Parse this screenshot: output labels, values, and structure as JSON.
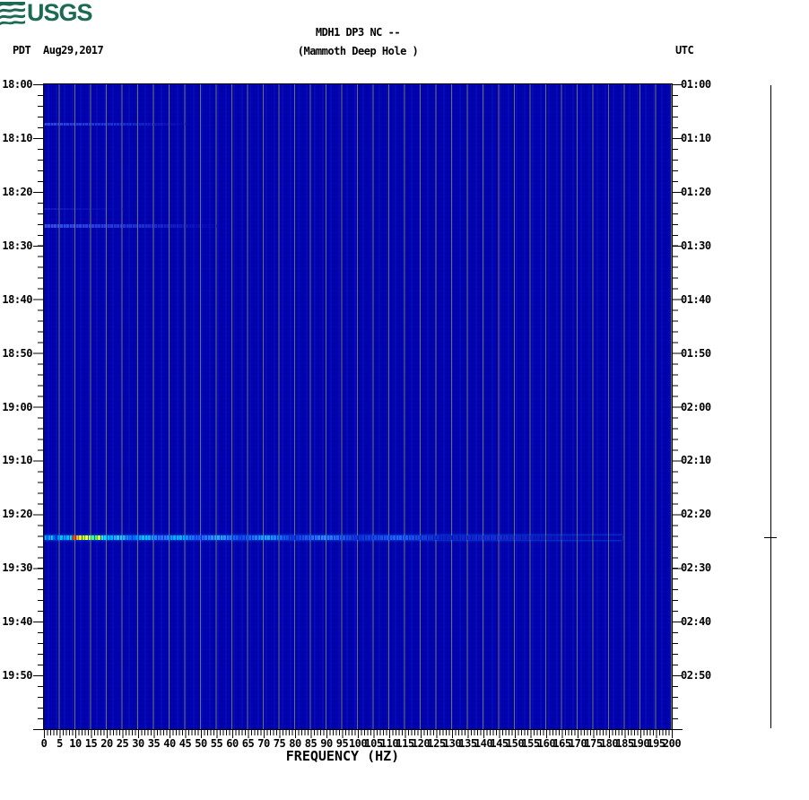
{
  "header": {
    "logo_text": "USGS",
    "tz_left": "PDT",
    "date": "Aug29,2017",
    "title": "MDH1 DP3 NC --",
    "subtitle": "(Mammoth Deep Hole )",
    "tz_right": "UTC"
  },
  "left_axis": {
    "labels": [
      "18:00",
      "18:10",
      "18:20",
      "18:30",
      "18:40",
      "18:50",
      "19:00",
      "19:10",
      "19:20",
      "19:30",
      "19:40",
      "19:50"
    ]
  },
  "right_axis": {
    "labels": [
      "01:00",
      "01:10",
      "01:20",
      "01:30",
      "01:40",
      "01:50",
      "02:00",
      "02:10",
      "02:20",
      "02:30",
      "02:40",
      "02:50"
    ]
  },
  "x_axis": {
    "title": "FREQUENCY (HZ)",
    "tick_labels": [
      "0",
      "5",
      "10",
      "15",
      "20",
      "25",
      "30",
      "35",
      "40",
      "45",
      "50",
      "55",
      "60",
      "65",
      "70",
      "75",
      "80",
      "85",
      "90",
      "95",
      "100",
      "105",
      "110",
      "115",
      "120",
      "125",
      "130",
      "135",
      "140",
      "145",
      "150",
      "155",
      "160",
      "165",
      "170",
      "175",
      "180",
      "185",
      "190",
      "195",
      "200"
    ]
  },
  "chart_data": {
    "type": "heatmap",
    "title": "MDH1 DP3 NC --",
    "subtitle": "(Mammoth Deep Hole )",
    "xlabel": "FREQUENCY (HZ)",
    "x_range_hz": [
      0,
      200
    ],
    "x_minor_tick_hz": 1,
    "x_major_tick_hz": 5,
    "x_gridline_step_hz": 5,
    "y_axis_left_pdt": {
      "start": "18:00",
      "end": "20:00",
      "minor_tick_min": 2,
      "label_step_min": 10,
      "date": "Aug29,2017"
    },
    "y_axis_right_utc": {
      "start": "01:00",
      "end": "03:00",
      "minor_tick_min": 2,
      "label_step_min": 10
    },
    "colormap": "jet (dark blue = low power, red = high power)",
    "background": "uniform low-power dark blue with faint vertical striation texture",
    "grid": "vertical gray gridlines every 5 Hz",
    "events": [
      {
        "time_pdt": "18:07",
        "time_utc": "01:07",
        "freq_span_hz": [
          0,
          47
        ],
        "intensity": "very faint light-blue band"
      },
      {
        "time_pdt": "18:23",
        "time_utc": "01:23",
        "freq_span_hz": [
          0,
          27
        ],
        "intensity": "barely visible light-blue wisp"
      },
      {
        "time_pdt": "18:26",
        "time_utc": "01:26",
        "freq_span_hz": [
          0,
          56
        ],
        "intensity": "faint light-blue band"
      },
      {
        "time_pdt": "19:24",
        "time_utc": "02:24",
        "freq_span_hz": [
          0,
          184
        ],
        "intensity": "strong broadband burst; peak (red/yellow/green) near 9-20 Hz, cyan streaks to ~110 Hz, fading blue streaks beyond"
      }
    ],
    "side_trace": {
      "description": "vertical amplitude trace at far right, flat line with single blip",
      "blip_time_pdt": "19:24",
      "blip_time_utc": "02:24"
    }
  },
  "colors": {
    "plot_background": "#0103b2",
    "gridline": "#70706a",
    "logo_green": "#1b6b52",
    "event_peak_colors": [
      "#ee2200",
      "#ffee00",
      "#55ff77",
      "#00eaff"
    ],
    "text": "#000000",
    "page_background": "#ffffff"
  }
}
